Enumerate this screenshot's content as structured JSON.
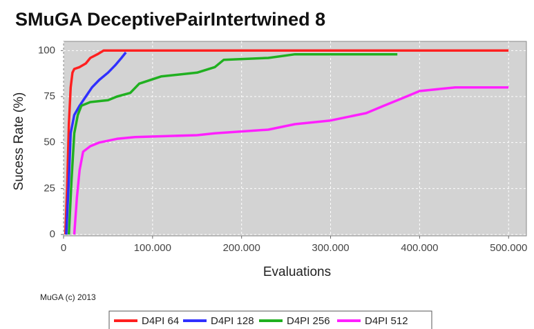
{
  "chart_data": {
    "type": "line",
    "title": "SMuGA DeceptivePairIntertwined 8",
    "xlabel": "Evaluations",
    "ylabel": "Sucess Rate (%)",
    "footer": "MuGA (c) 2013",
    "xlim": [
      0,
      520000
    ],
    "ylim": [
      0,
      105
    ],
    "xticks": [
      0,
      {
        "value": 100000,
        "label": "100.000"
      },
      {
        "value": 200000,
        "label": "200.000"
      },
      {
        "value": 300000,
        "label": "300.000"
      },
      {
        "value": 400000,
        "label": "400.000"
      },
      {
        "value": 500000,
        "label": "500.000"
      }
    ],
    "yticks": [
      0,
      25,
      50,
      75,
      100
    ],
    "grid": true,
    "series": [
      {
        "name": "D4PI 64",
        "color": "#ff2020",
        "x": [
          2000,
          4000,
          6000,
          8000,
          10000,
          12000,
          18000,
          25000,
          30000,
          38000,
          45000,
          500000
        ],
        "values": [
          0,
          25,
          60,
          80,
          88,
          90,
          91,
          93,
          96,
          98,
          100,
          100
        ]
      },
      {
        "name": "D4PI 128",
        "color": "#3030ff",
        "x": [
          3000,
          6000,
          8000,
          12000,
          18000,
          25000,
          32000,
          40000,
          50000,
          58000,
          65000,
          70000
        ],
        "values": [
          0,
          30,
          55,
          65,
          70,
          75,
          80,
          84,
          88,
          92,
          96,
          99
        ]
      },
      {
        "name": "D4PI 256",
        "color": "#20b020",
        "x": [
          6000,
          9000,
          12000,
          16000,
          20000,
          30000,
          50000,
          60000,
          75000,
          85000,
          110000,
          150000,
          170000,
          180000,
          230000,
          260000,
          375000
        ],
        "values": [
          0,
          30,
          55,
          65,
          70,
          72,
          73,
          75,
          77,
          82,
          86,
          88,
          91,
          95,
          96,
          98,
          98
        ]
      },
      {
        "name": "D4PI 512",
        "color": "#ff20ff",
        "x": [
          12000,
          15000,
          18000,
          22000,
          30000,
          40000,
          60000,
          80000,
          150000,
          170000,
          230000,
          260000,
          300000,
          340000,
          360000,
          380000,
          400000,
          440000,
          500000
        ],
        "values": [
          0,
          20,
          35,
          45,
          48,
          50,
          52,
          53,
          54,
          55,
          57,
          60,
          62,
          66,
          70,
          74,
          78,
          80,
          80
        ]
      }
    ]
  }
}
